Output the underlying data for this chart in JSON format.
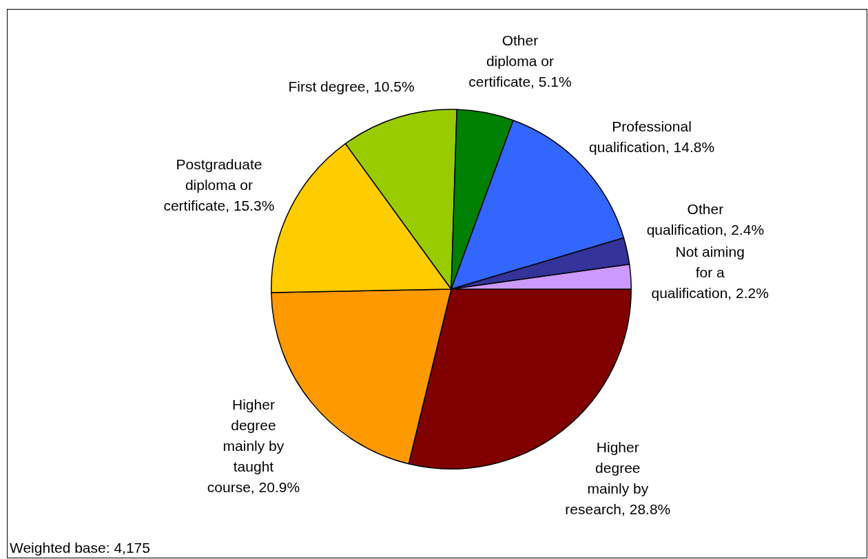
{
  "chart_data": {
    "type": "pie",
    "categories": [
      "Higher degree mainly by research",
      "Higher degree mainly by taught course",
      "Postgraduate diploma or certificate",
      "First degree",
      "Other diploma or certificate",
      "Professional qualification",
      "Other qualification",
      "Not aiming for a qualification"
    ],
    "values": [
      28.8,
      20.9,
      15.3,
      10.5,
      5.1,
      14.8,
      2.4,
      2.2
    ],
    "colors": [
      "#800000",
      "#ff9900",
      "#ffcc00",
      "#99cc00",
      "#008000",
      "#3366ff",
      "#333399",
      "#cc99ff"
    ],
    "value_labels": [
      "28.8%",
      "20.9%",
      "15.3%",
      "10.5%",
      "5.1%",
      "14.8%",
      "2.4%",
      "2.2%"
    ],
    "annotations": [
      "Weighted base: 4,175"
    ]
  }
}
